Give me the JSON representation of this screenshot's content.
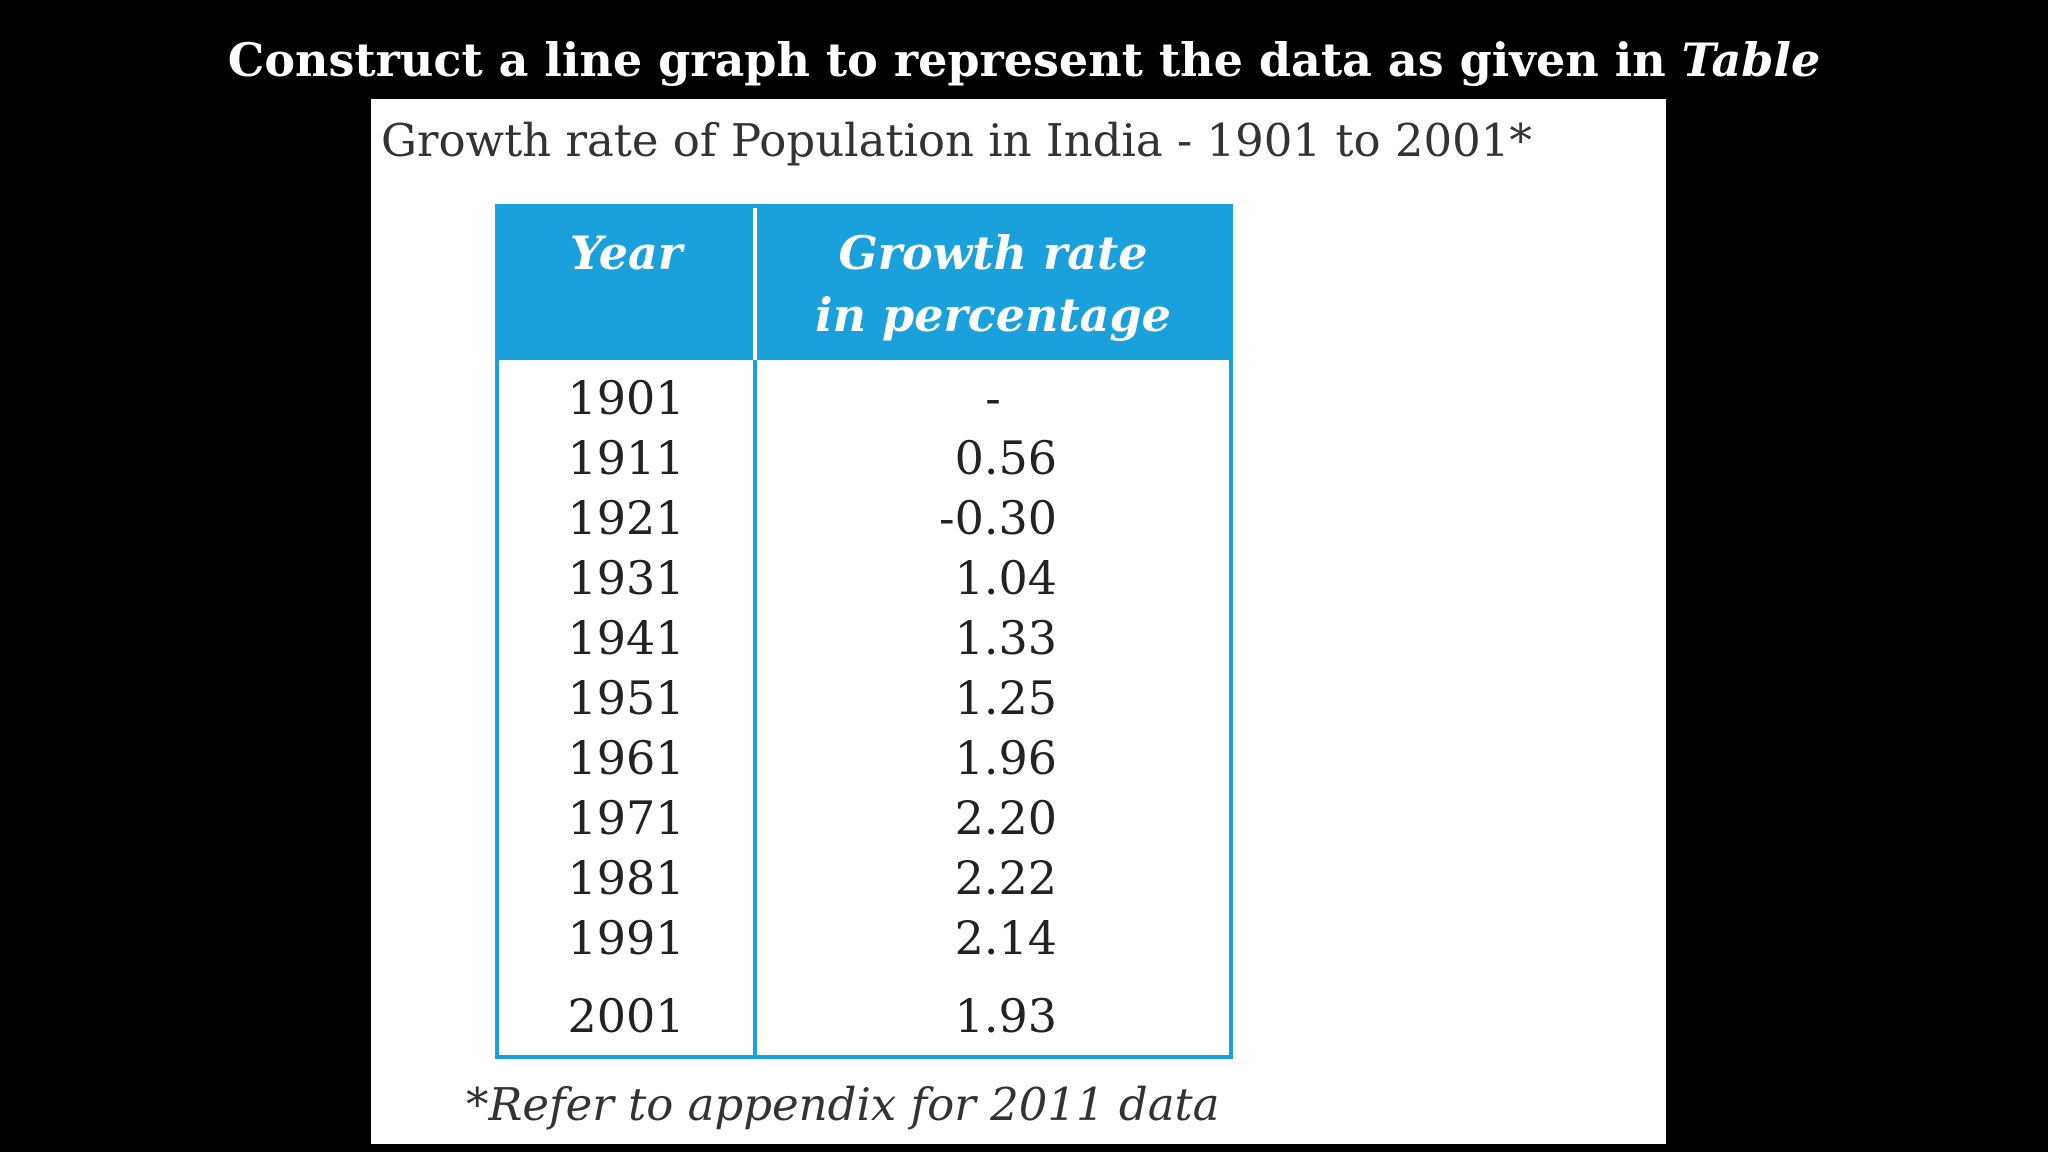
{
  "slide": {
    "instruction": "Construct a line graph to represent the data as given in",
    "instruction_emphasis": "Table"
  },
  "document": {
    "heading": "Growth rate of Population in India - 1901 to 2001*",
    "footnote": "*Refer to appendix for 2011 data"
  },
  "table": {
    "headers": {
      "year": "Year",
      "rate_line1": "Growth rate",
      "rate_line2": "in percentage"
    },
    "rows": [
      {
        "year": "1901",
        "rate": "-"
      },
      {
        "year": "1911",
        "rate": "0.56"
      },
      {
        "year": "1921",
        "rate": "-0.30"
      },
      {
        "year": "1931",
        "rate": "1.04"
      },
      {
        "year": "1941",
        "rate": "1.33"
      },
      {
        "year": "1951",
        "rate": "1.25"
      },
      {
        "year": "1961",
        "rate": "1.96"
      },
      {
        "year": "1971",
        "rate": "2.20"
      },
      {
        "year": "1981",
        "rate": "2.22"
      },
      {
        "year": "1991",
        "rate": "2.14"
      },
      {
        "year": "2001",
        "rate": "1.93"
      }
    ]
  },
  "colors": {
    "background": "#000000",
    "table_accent": "#1aa1db",
    "panel": "#ffffff"
  }
}
